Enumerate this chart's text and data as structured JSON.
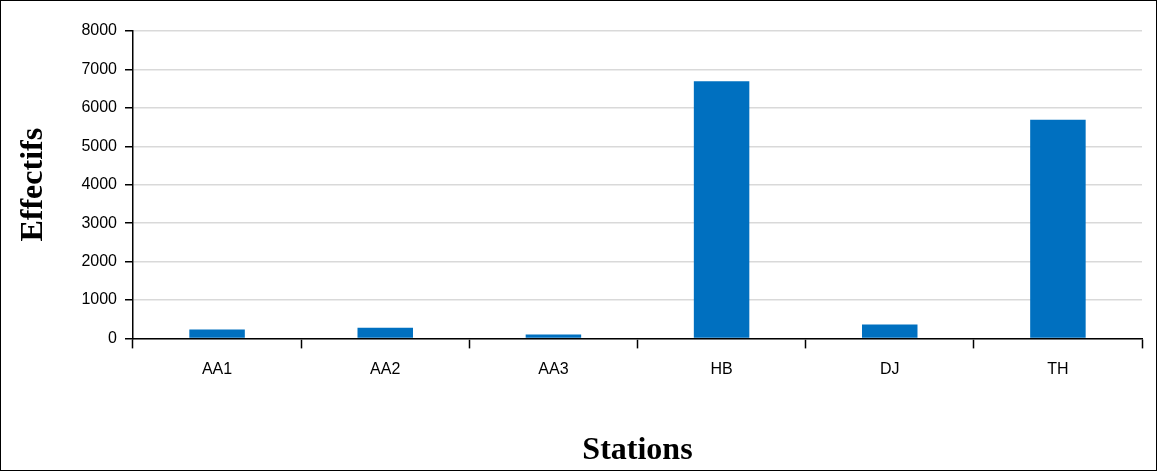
{
  "chart_data": {
    "type": "bar",
    "xlabel": "Stations",
    "ylabel": "Effectifs",
    "categories": [
      "AA1",
      "AA2",
      "AA3",
      "HB",
      "DJ",
      "TH"
    ],
    "values": [
      230,
      280,
      100,
      6690,
      360,
      5690
    ],
    "color": "#0070c0",
    "ylim": [
      0,
      8000
    ],
    "yticks": [
      0,
      1000,
      2000,
      3000,
      4000,
      5000,
      6000,
      7000,
      8000
    ],
    "grid": "y"
  }
}
